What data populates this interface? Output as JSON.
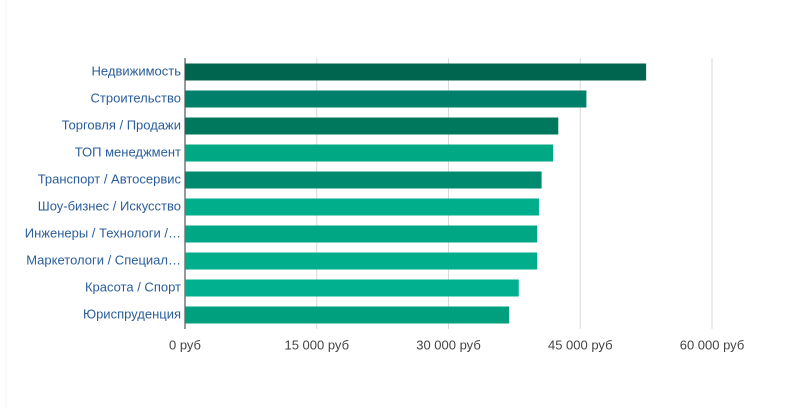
{
  "chart_data": {
    "type": "hbar",
    "categories": [
      "Недвижимость",
      "Строительство",
      "Торговля / Продажи",
      "ТОП менеджмент",
      "Транспорт / Автосервис",
      "Шоу-бизнес / Искусство",
      "Инженеры / Технологи /…",
      "Маркетологи / Специал…",
      "Красота / Спорт",
      "Юриспруденция"
    ],
    "values": [
      52500,
      45700,
      42500,
      41900,
      40600,
      40300,
      40100,
      40100,
      38000,
      36900
    ],
    "colors": [
      "#00654f",
      "#007f6a",
      "#00785e",
      "#00a884",
      "#008a70",
      "#00ae8c",
      "#00a784",
      "#00ae8c",
      "#00b08e",
      "#00a07f"
    ],
    "xlim": [
      0,
      60000
    ],
    "xticks": [
      {
        "value": 0,
        "label": "0 руб"
      },
      {
        "value": 15000,
        "label": "15 000 руб"
      },
      {
        "value": 30000,
        "label": "30 000 руб"
      },
      {
        "value": 45000,
        "label": "45 000 руб"
      },
      {
        "value": 60000,
        "label": "60 000 руб"
      }
    ],
    "grid": true
  }
}
